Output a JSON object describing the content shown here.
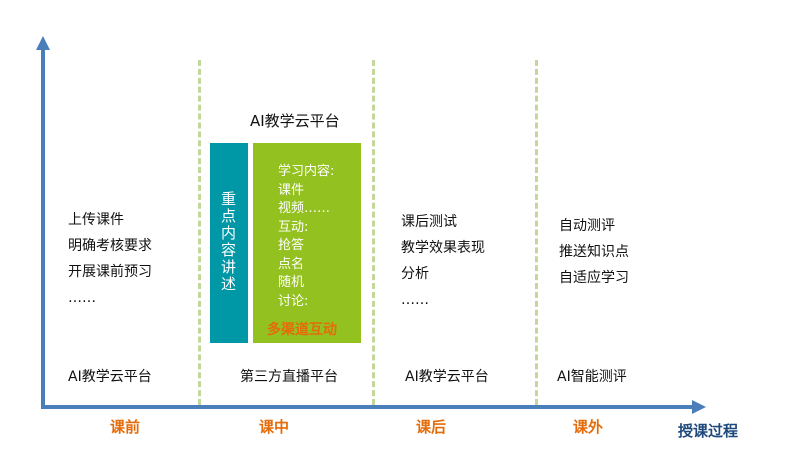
{
  "colors": {
    "axis": "#4a7ebb",
    "divider": "#c3d69b",
    "phase": "#e46c0a",
    "teal": "#0098a6",
    "green": "#93c11f",
    "axis_label": "#1f497d"
  },
  "axis_label": "授课过程",
  "columns": [
    {
      "phase": "课前",
      "items": [
        "上传课件",
        "明确考核要求",
        "开展课前预习",
        "……"
      ],
      "platform": "AI教学云平台"
    },
    {
      "phase": "课中",
      "top_platform": "AI教学云平台",
      "lecture": "重点内容讲述",
      "interaction_items": [
        "学习内容:",
        "课件",
        "视频……",
        "互动:",
        "抢答",
        "点名",
        "随机",
        "讨论:"
      ],
      "interaction_title": "多渠道互动",
      "platform": "第三方直播平台"
    },
    {
      "phase": "课后",
      "items": [
        "课后测试",
        "教学效果表现",
        "分析",
        "……"
      ],
      "platform": "AI教学云平台"
    },
    {
      "phase": "课外",
      "items": [
        "自动测评",
        "推送知识点",
        "自适应学习"
      ],
      "platform": "AI智能测评"
    }
  ]
}
